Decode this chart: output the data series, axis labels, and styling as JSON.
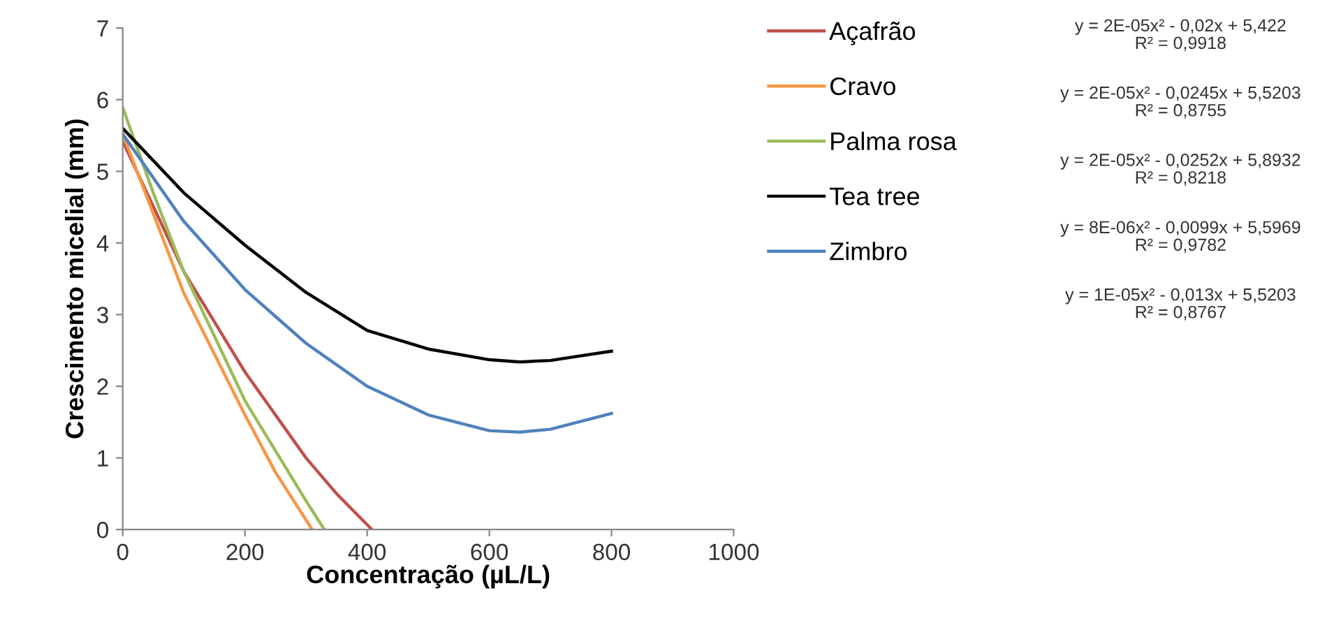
{
  "chart_data": {
    "type": "line",
    "xlabel": "Concentração (µL/L)",
    "ylabel": "Crescimento micelial (mm)",
    "xlim": [
      0,
      1000
    ],
    "xticks": [
      0,
      200,
      400,
      600,
      800,
      1000
    ],
    "ylim": [
      0,
      7
    ],
    "yticks": [
      0,
      1,
      2,
      3,
      4,
      5,
      6,
      7
    ],
    "grid": false,
    "legend": "right",
    "marker": "none",
    "line_style": "solid",
    "series": [
      {
        "name": "Açafrão",
        "color": "#c0504d",
        "x": [
          0,
          100,
          200,
          300,
          350,
          408
        ],
        "values": [
          5.42,
          3.6,
          2.2,
          1.0,
          0.5,
          0
        ]
      },
      {
        "name": "Cravo",
        "color": "#f79646",
        "x": [
          0,
          100,
          200,
          250,
          310
        ],
        "values": [
          5.52,
          3.3,
          1.6,
          0.8,
          0
        ]
      },
      {
        "name": "Palma rosa",
        "color": "#9bbb59",
        "x": [
          0,
          50,
          100,
          200,
          300,
          330
        ],
        "values": [
          5.89,
          4.7,
          3.6,
          1.8,
          0.4,
          0
        ]
      },
      {
        "name": "Tea tree",
        "color": "#000000",
        "x": [
          0,
          100,
          200,
          300,
          400,
          500,
          600,
          650,
          700,
          800
        ],
        "values": [
          5.6,
          4.7,
          3.97,
          3.31,
          2.78,
          2.52,
          2.37,
          2.34,
          2.36,
          2.49
        ]
      },
      {
        "name": "Zimbro",
        "color": "#4f81bd",
        "x": [
          0,
          100,
          200,
          300,
          400,
          500,
          600,
          650,
          700,
          800
        ],
        "values": [
          5.52,
          4.3,
          3.35,
          2.6,
          2.0,
          1.6,
          1.38,
          1.36,
          1.4,
          1.62
        ]
      }
    ],
    "annotations": [
      "y = 2E-05x² - 0,02x + 5,422\nR² = 0,9918",
      "y = 2E-05x² - 0,0245x + 5,5203\nR² = 0,8755",
      "y = 2E-05x² - 0,0252x + 5,8932\nR² = 0,8218",
      "y = 8E-06x² - 0,0099x + 5,5969\nR² = 0,9782",
      "y = 1E-05x² - 0,013x + 5,5203\nR² = 0,8767"
    ]
  }
}
